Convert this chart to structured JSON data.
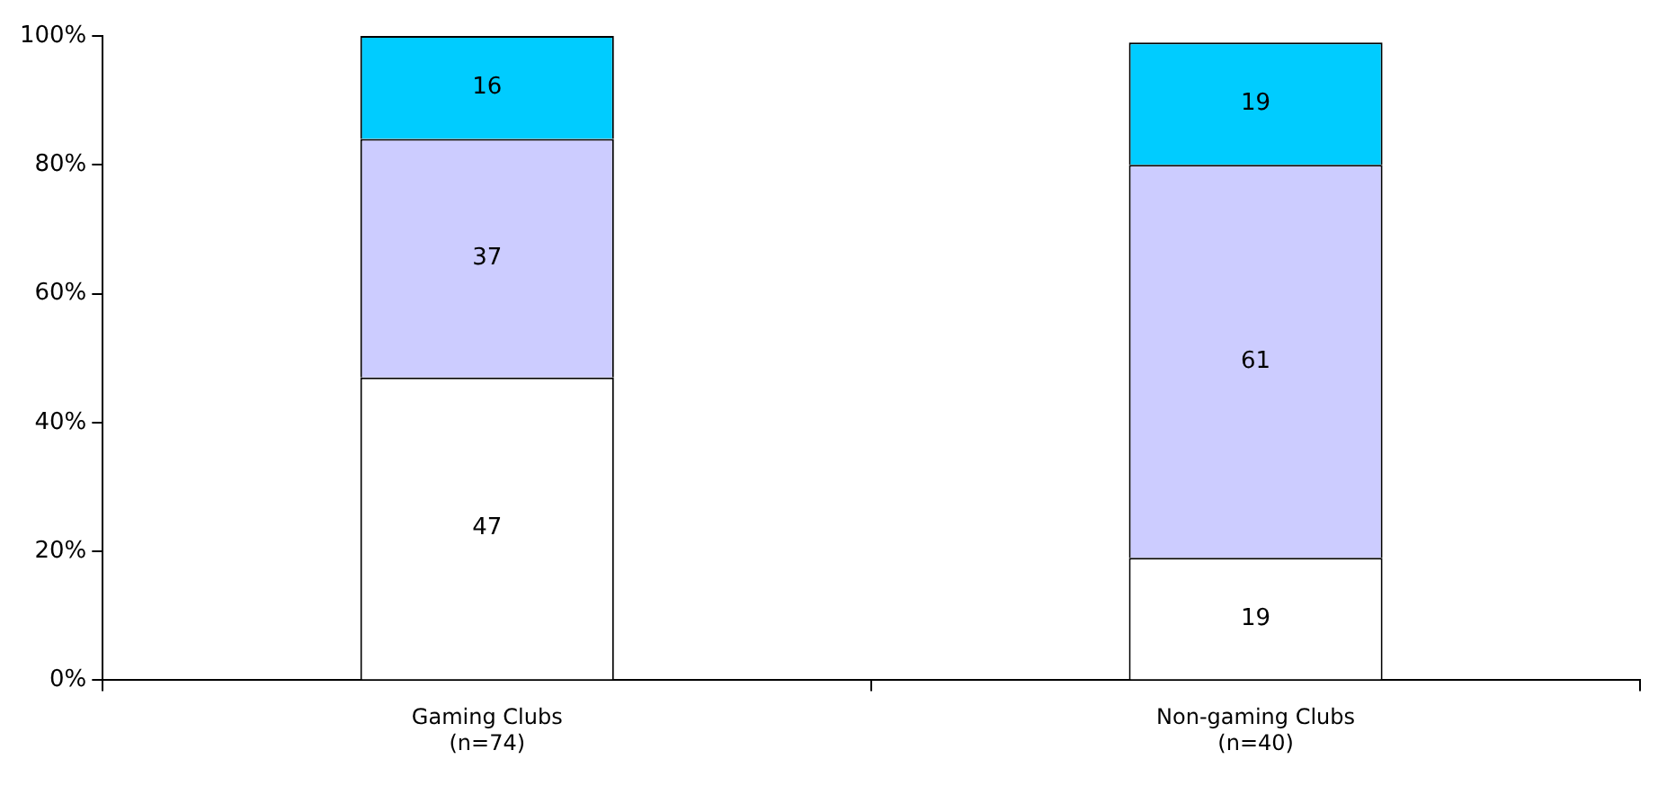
{
  "chart_data": {
    "type": "bar",
    "stacked": true,
    "categories": [
      "Gaming Clubs\n(n=74)",
      "Non-gaming Clubs\n(n=40)"
    ],
    "series": [
      {
        "color": "#ffffff",
        "values": [
          47,
          19
        ]
      },
      {
        "color": "#ccccff",
        "values": [
          37,
          61
        ]
      },
      {
        "color": "#00ccff",
        "values": [
          16,
          19
        ]
      }
    ],
    "ylim": [
      0,
      100
    ],
    "yticks": [
      {
        "value": 0,
        "label": "0%"
      },
      {
        "value": 20,
        "label": "20%"
      },
      {
        "value": 40,
        "label": "40%"
      },
      {
        "value": 60,
        "label": "60%"
      },
      {
        "value": 80,
        "label": "80%"
      },
      {
        "value": 100,
        "label": "100%"
      }
    ],
    "data_labels": true,
    "grid": false,
    "legend": false
  }
}
